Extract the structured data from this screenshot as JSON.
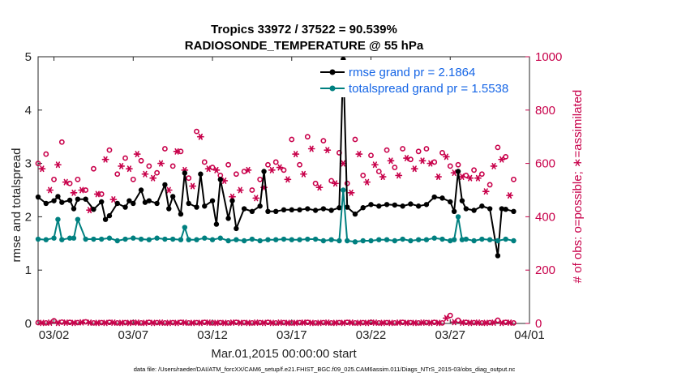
{
  "chart_data": {
    "type": "line",
    "title": "Tropics 33972 / 37522 = 90.539%",
    "subtitle": "RADIOSONDE_TEMPERATURE @ 55 hPa",
    "xlabel": "Mar.01,2015 00:00:00 start",
    "ylabel_left": "rmse and totalspread",
    "ylabel_right": "# of obs: o=possible; ∗=assimilated",
    "footnote": "data file: /Users/raeder/DAI/ATM_forcXX/CAM6_setup/f.e21.FHIST_BGC.f09_025.CAM6assim.011/Diags_NTrS_2015-03/obs_diag_output.nc",
    "x_unit": "day of March 2015 (fractional)",
    "xlim": [
      1,
      32
    ],
    "xticks": [
      2,
      7,
      12,
      17,
      22,
      27,
      32
    ],
    "xtick_labels": [
      "03/02",
      "03/07",
      "03/12",
      "03/17",
      "03/22",
      "03/27",
      "04/01"
    ],
    "ylim_left": [
      0,
      5
    ],
    "yticks_left": [
      "0",
      "1",
      "2",
      "3",
      "4",
      "5"
    ],
    "ylim_right": [
      0,
      1000
    ],
    "yticks_right": [
      "0",
      "200",
      "400",
      "600",
      "800",
      "1000"
    ],
    "legend": {
      "position": "top-right",
      "entries": [
        "rmse grand pr = 2.1864",
        "totalspread grand pr = 1.5538"
      ]
    },
    "colors": {
      "rmse": "#000000",
      "totalspread": "#008080",
      "obs": "#c8004a",
      "legend_text": "#1565e6"
    },
    "series": [
      {
        "name": "rmse",
        "axis": "left",
        "x": [
          1.0,
          1.5,
          2.0,
          2.25,
          2.5,
          3.0,
          3.25,
          3.5,
          4.0,
          4.5,
          5.0,
          5.25,
          5.5,
          6.0,
          6.5,
          6.75,
          7.0,
          7.5,
          7.75,
          8.0,
          8.5,
          9.0,
          9.25,
          9.5,
          10.0,
          10.25,
          10.5,
          11.0,
          11.25,
          11.5,
          12.0,
          12.25,
          12.5,
          13.0,
          13.25,
          13.5,
          14.0,
          14.5,
          15.0,
          15.25,
          15.5,
          16.0,
          16.5,
          17.0,
          17.5,
          18.0,
          18.5,
          19.0,
          19.5,
          20.0,
          20.25,
          20.5,
          21.0,
          21.5,
          22.0,
          22.5,
          23.0,
          23.5,
          24.0,
          24.5,
          25.0,
          25.5,
          26.0,
          26.5,
          27.0,
          27.25,
          27.5,
          27.75,
          28.0,
          28.5,
          29.0,
          29.5,
          30.0,
          30.25,
          30.5,
          31.0
        ],
        "values": [
          2.37,
          2.25,
          2.3,
          2.38,
          2.27,
          2.31,
          2.15,
          2.33,
          2.33,
          2.14,
          2.28,
          1.95,
          2.02,
          2.25,
          2.18,
          2.3,
          2.25,
          2.5,
          2.27,
          2.3,
          2.25,
          2.6,
          2.15,
          2.38,
          2.05,
          2.82,
          2.25,
          2.18,
          2.8,
          2.2,
          2.3,
          1.86,
          2.7,
          1.97,
          2.3,
          1.78,
          2.15,
          2.1,
          2.2,
          2.85,
          2.1,
          2.1,
          2.13,
          2.13,
          2.13,
          2.15,
          2.12,
          2.15,
          2.12,
          2.17,
          4.95,
          2.18,
          2.05,
          2.17,
          2.23,
          2.2,
          2.23,
          2.22,
          2.2,
          2.24,
          2.2,
          2.23,
          2.37,
          2.35,
          2.28,
          2.1,
          2.85,
          2.3,
          2.15,
          2.12,
          2.2,
          2.15,
          1.27,
          2.15,
          2.14,
          2.1
        ]
      },
      {
        "name": "totalspread",
        "axis": "left",
        "x": [
          1.0,
          1.5,
          2.0,
          2.25,
          2.5,
          3.0,
          3.25,
          3.5,
          4.0,
          4.5,
          5.0,
          5.5,
          6.0,
          6.5,
          7.0,
          7.5,
          8.0,
          8.5,
          9.0,
          9.5,
          10.0,
          10.25,
          10.5,
          11.0,
          11.5,
          12.0,
          12.5,
          13.0,
          13.5,
          14.0,
          14.5,
          15.0,
          15.5,
          16.0,
          16.5,
          17.0,
          17.5,
          18.0,
          18.5,
          19.0,
          19.5,
          20.0,
          20.25,
          20.5,
          21.0,
          21.5,
          22.0,
          22.5,
          23.0,
          23.5,
          24.0,
          24.5,
          25.0,
          25.5,
          26.0,
          26.5,
          27.0,
          27.25,
          27.5,
          27.75,
          28.0,
          28.5,
          29.0,
          29.5,
          30.0,
          30.5,
          31.0
        ],
        "values": [
          1.58,
          1.57,
          1.6,
          1.95,
          1.57,
          1.6,
          1.6,
          1.95,
          1.58,
          1.58,
          1.58,
          1.6,
          1.55,
          1.58,
          1.6,
          1.58,
          1.57,
          1.6,
          1.58,
          1.58,
          1.57,
          1.8,
          1.57,
          1.57,
          1.6,
          1.57,
          1.6,
          1.55,
          1.57,
          1.55,
          1.58,
          1.55,
          1.57,
          1.57,
          1.58,
          1.57,
          1.57,
          1.58,
          1.58,
          1.55,
          1.57,
          1.55,
          2.5,
          1.55,
          1.53,
          1.55,
          1.55,
          1.57,
          1.57,
          1.55,
          1.58,
          1.55,
          1.57,
          1.57,
          1.6,
          1.58,
          1.55,
          1.57,
          2.0,
          1.57,
          1.58,
          1.55,
          1.58,
          1.57,
          1.55,
          1.58,
          1.55
        ]
      },
      {
        "name": "obs possible",
        "axis": "right",
        "marker": "o",
        "x": [
          1.0,
          1.5,
          2.0,
          2.5,
          3.0,
          3.5,
          4.0,
          4.5,
          5.0,
          5.5,
          6.0,
          6.5,
          7.0,
          7.5,
          8.0,
          8.5,
          9.0,
          9.5,
          10.0,
          10.5,
          11.0,
          11.5,
          12.0,
          12.5,
          13.0,
          13.5,
          14.0,
          14.5,
          15.0,
          15.5,
          16.0,
          16.5,
          17.0,
          17.5,
          18.0,
          18.5,
          19.0,
          19.5,
          20.0,
          20.5,
          21.0,
          21.5,
          22.0,
          22.5,
          23.0,
          23.5,
          24.0,
          24.5,
          25.0,
          25.5,
          26.0,
          26.5,
          27.0,
          27.5,
          28.0,
          28.5,
          29.0,
          29.5,
          30.0,
          30.5,
          31.0
        ],
        "values": [
          600,
          635,
          540,
          680,
          525,
          540,
          500,
          580,
          485,
          650,
          560,
          620,
          540,
          610,
          590,
          565,
          655,
          590,
          645,
          545,
          720,
          605,
          585,
          555,
          595,
          560,
          570,
          500,
          540,
          595,
          605,
          575,
          690,
          595,
          700,
          525,
          685,
          535,
          640,
          525,
          690,
          555,
          630,
          570,
          650,
          585,
          655,
          615,
          645,
          655,
          605,
          640,
          590,
          595,
          555,
          575,
          560,
          520,
          660,
          625,
          540
        ]
      },
      {
        "name": "obs assimilated",
        "axis": "right",
        "marker": "*",
        "x": [
          1.25,
          1.75,
          2.25,
          2.75,
          3.25,
          3.75,
          4.25,
          4.75,
          5.25,
          5.75,
          6.25,
          6.75,
          7.25,
          7.75,
          8.25,
          8.75,
          9.25,
          9.75,
          10.25,
          10.75,
          11.25,
          11.75,
          12.25,
          12.75,
          13.25,
          13.75,
          14.25,
          14.75,
          15.25,
          15.75,
          16.25,
          16.75,
          17.25,
          17.75,
          18.25,
          18.75,
          19.25,
          19.75,
          20.25,
          20.75,
          21.25,
          21.75,
          22.25,
          22.75,
          23.25,
          23.75,
          24.25,
          24.75,
          25.25,
          25.75,
          26.25,
          26.75,
          27.25,
          27.75,
          28.25,
          28.75,
          29.25,
          29.75,
          30.25,
          30.75
        ],
        "values": [
          580,
          500,
          595,
          530,
          490,
          500,
          425,
          485,
          615,
          465,
          590,
          580,
          635,
          560,
          545,
          600,
          500,
          645,
          575,
          515,
          700,
          580,
          575,
          535,
          475,
          500,
          575,
          470,
          510,
          575,
          585,
          540,
          635,
          560,
          655,
          510,
          650,
          525,
          600,
          490,
          635,
          530,
          595,
          550,
          610,
          555,
          620,
          580,
          610,
          600,
          550,
          625,
          565,
          550,
          545,
          545,
          495,
          590,
          615,
          480
        ]
      },
      {
        "name": "obs possible (near zero)",
        "axis": "right",
        "marker": "o",
        "x": [
          1.0,
          1.5,
          2.0,
          2.5,
          3.0,
          3.5,
          4.0,
          4.5,
          5.0,
          5.5,
          6.0,
          6.5,
          7.0,
          7.5,
          8.0,
          8.5,
          9.0,
          9.5,
          10.0,
          10.5,
          11.0,
          11.5,
          12.0,
          12.5,
          13.0,
          13.5,
          14.0,
          14.5,
          15.0,
          15.5,
          16.0,
          16.5,
          17.0,
          17.5,
          18.0,
          18.5,
          19.0,
          19.5,
          20.0,
          20.5,
          21.0,
          21.5,
          22.0,
          22.5,
          23.0,
          23.5,
          24.0,
          24.5,
          25.0,
          25.5,
          26.0,
          26.5,
          27.0,
          27.5,
          28.0,
          28.5,
          29.0,
          29.5,
          30.0,
          30.5,
          31.0
        ],
        "values": [
          3,
          2,
          10,
          5,
          4,
          3,
          6,
          2,
          3,
          4,
          2,
          3,
          3,
          2,
          4,
          3,
          2,
          3,
          4,
          2,
          3,
          4,
          2,
          3,
          2,
          4,
          3,
          2,
          3,
          4,
          2,
          3,
          2,
          3,
          4,
          2,
          3,
          2,
          3,
          4,
          2,
          3,
          4,
          2,
          3,
          2,
          4,
          3,
          2,
          3,
          4,
          2,
          30,
          12,
          4,
          3,
          2,
          3,
          12,
          4,
          2
        ]
      },
      {
        "name": "obs assimilated (near zero)",
        "axis": "right",
        "marker": "*",
        "x": [
          1.25,
          1.75,
          2.25,
          2.75,
          3.25,
          3.75,
          4.25,
          4.75,
          5.25,
          5.75,
          6.25,
          6.75,
          7.25,
          7.75,
          8.25,
          8.75,
          9.25,
          9.75,
          10.25,
          10.75,
          11.25,
          11.75,
          12.25,
          12.75,
          13.25,
          13.75,
          14.25,
          14.75,
          15.25,
          15.75,
          16.25,
          16.75,
          17.25,
          17.75,
          18.25,
          18.75,
          19.25,
          19.75,
          20.25,
          20.75,
          21.25,
          21.75,
          22.25,
          22.75,
          23.25,
          23.75,
          24.25,
          24.75,
          25.25,
          25.75,
          26.25,
          26.75,
          27.25,
          27.75,
          28.25,
          28.75,
          29.25,
          29.75,
          30.25,
          30.75
        ],
        "values": [
          2,
          3,
          2,
          3,
          2,
          4,
          3,
          2,
          2,
          3,
          2,
          2,
          3,
          2,
          2,
          3,
          2,
          2,
          3,
          2,
          2,
          3,
          2,
          2,
          3,
          2,
          2,
          3,
          2,
          2,
          3,
          2,
          2,
          3,
          2,
          2,
          3,
          2,
          2,
          3,
          2,
          2,
          3,
          2,
          2,
          3,
          2,
          2,
          3,
          2,
          2,
          20,
          5,
          3,
          2,
          3,
          2,
          3,
          2,
          3
        ]
      }
    ]
  }
}
